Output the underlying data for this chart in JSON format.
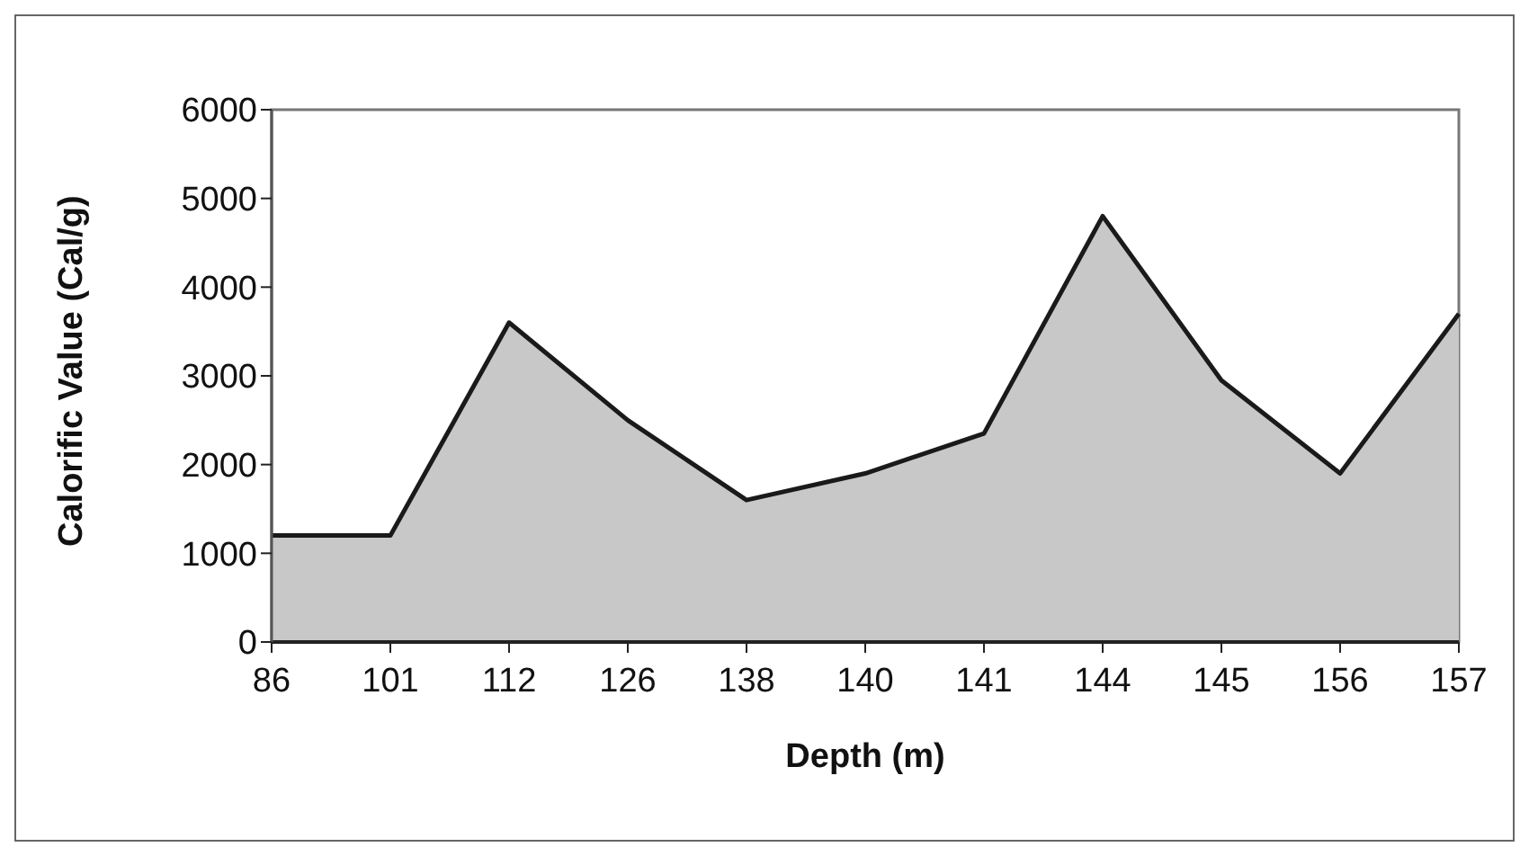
{
  "chart_data": {
    "type": "area",
    "xlabel": "Depth (m)",
    "ylabel": "Calorific Value (Cal/g)",
    "categories": [
      "86",
      "101",
      "112",
      "126",
      "138",
      "140",
      "141",
      "144",
      "145",
      "156",
      "157"
    ],
    "series": [
      {
        "color": "#c8c8c8",
        "values": [
          1200,
          1200,
          3600,
          2500,
          1600,
          1900,
          2350,
          4800,
          2950,
          1900,
          3700
        ]
      }
    ],
    "ylim": [
      0,
      6000
    ],
    "yticks": [
      0,
      1000,
      2000,
      3000,
      4000,
      5000,
      6000
    ],
    "grid": false
  }
}
